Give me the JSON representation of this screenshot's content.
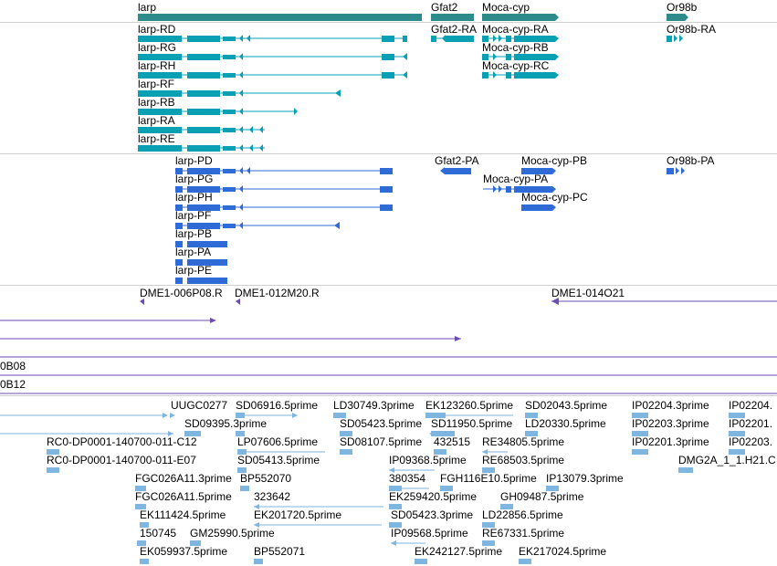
{
  "colors": {
    "gene": "#2e8b8b",
    "transcript": "#0aa0b4",
    "cds": "#2f6bd6",
    "clone": "#6a4fb0",
    "est": "#7fb6e0",
    "separator": "#cfcfcf"
  },
  "tracks": {
    "genes": [
      {
        "label": "larp"
      },
      {
        "label": "Gfat2"
      },
      {
        "label": "Moca-cyp"
      },
      {
        "label": "Or98b"
      }
    ],
    "transcripts": [
      {
        "label": "larp-RD"
      },
      {
        "label": "Gfat2-RA"
      },
      {
        "label": "Moca-cyp-RA"
      },
      {
        "label": "Or98b-RA"
      },
      {
        "label": "larp-RG"
      },
      {
        "label": "Moca-cyp-RB"
      },
      {
        "label": "larp-RH"
      },
      {
        "label": "Moca-cyp-RC"
      },
      {
        "label": "larp-RF"
      },
      {
        "label": "larp-RB"
      },
      {
        "label": "larp-RA"
      },
      {
        "label": "larp-RE"
      }
    ],
    "cds": [
      {
        "label": "larp-PD"
      },
      {
        "label": "Gfat2-PA"
      },
      {
        "label": "Moca-cyp-PB"
      },
      {
        "label": "Or98b-PA"
      },
      {
        "label": "larp-PG"
      },
      {
        "label": "Moca-cyp-PA"
      },
      {
        "label": "larp-PH"
      },
      {
        "label": "Moca-cyp-PC"
      },
      {
        "label": "larp-PF"
      },
      {
        "label": "larp-PB"
      },
      {
        "label": "larp-PA"
      },
      {
        "label": "larp-PE"
      }
    ],
    "clones": [
      {
        "label": "DME1-006P08.R"
      },
      {
        "label": "DME1-012M20.R"
      },
      {
        "label": "DME1-014O21"
      }
    ],
    "rows": [
      {
        "label": "0B08"
      },
      {
        "label": "0B12"
      }
    ],
    "ests": [
      {
        "label": "UUGC0277"
      },
      {
        "label": "SD06916.5prime"
      },
      {
        "label": "LD30749.3prime"
      },
      {
        "label": "EK123260.5prime"
      },
      {
        "label": "SD02043.5prime"
      },
      {
        "label": "IP02204.3prime"
      },
      {
        "label": "IP02204."
      },
      {
        "label": "SD09395.3prime"
      },
      {
        "label": "SD05423.5prime"
      },
      {
        "label": "SD11950.5prime"
      },
      {
        "label": "LD20330.5prime"
      },
      {
        "label": "IP02203.3prime"
      },
      {
        "label": "IP02201."
      },
      {
        "label": "RC0-DP0001-140700-011-C12"
      },
      {
        "label": "LP07606.5prime"
      },
      {
        "label": "SD08107.5prime"
      },
      {
        "label": "432515"
      },
      {
        "label": "RE34805.5prime"
      },
      {
        "label": "IP02201.3prime"
      },
      {
        "label": "IP02203."
      },
      {
        "label": "RC0-DP0001-140700-011-E07"
      },
      {
        "label": "SD05413.5prime"
      },
      {
        "label": "IP09368.5prime"
      },
      {
        "label": "RE68503.5prime"
      },
      {
        "label": "DMG2A_1_1.H21.C"
      },
      {
        "label": "FGC026A11.3prime"
      },
      {
        "label": "BP552070"
      },
      {
        "label": "380354"
      },
      {
        "label": "FGH116E10.5prime"
      },
      {
        "label": "IP13079.3prime"
      },
      {
        "label": "FGC026A11.5prime"
      },
      {
        "label": "323642"
      },
      {
        "label": "EK259420.5prime"
      },
      {
        "label": "GH09487.5prime"
      },
      {
        "label": "EK111424.5prime"
      },
      {
        "label": "EK201720.5prime"
      },
      {
        "label": "SD05423.3prime"
      },
      {
        "label": "LD22856.5prime"
      },
      {
        "label": "150745"
      },
      {
        "label": "GM25990.5prime"
      },
      {
        "label": "IP09568.5prime"
      },
      {
        "label": "RE67331.5prime"
      },
      {
        "label": "EK059937.5prime"
      },
      {
        "label": "BP552071"
      },
      {
        "label": "EK242127.5prime"
      },
      {
        "label": "EK217024.5prime"
      }
    ]
  }
}
